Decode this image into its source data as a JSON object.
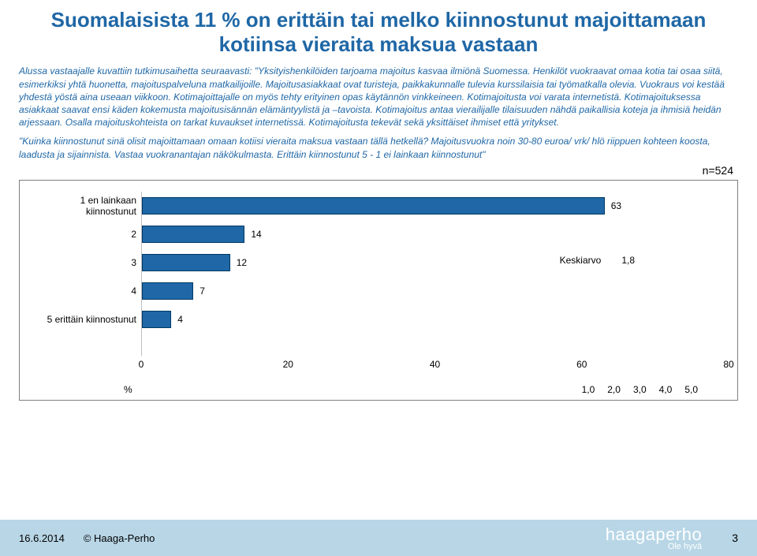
{
  "title": "Suomalaisista 11 % on erittäin tai melko kiinnostunut majoittamaan kotiinsa vieraita maksua vastaan",
  "description": "Alussa vastaajalle kuvattiin tutkimusaihetta seuraavasti: \"Yksityishenkilöiden tarjoama majoitus kasvaa ilmiönä Suomessa. Henkilöt vuokraavat omaa kotia tai osaa siitä, esimerkiksi yhtä huonetta, majoituspalveluna matkailijoille. Majoitusasiakkaat ovat turisteja, paikkakunnalle tulevia kurssilaisia tai työmatkalla olevia. Vuokraus voi kestää yhdestä yöstä aina useaan viikkoon. Kotimajoittajalle on myös tehty erityinen opas käytännön vinkkeineen. Kotimajoitusta voi varata internetistä. Kotimajoituksessa asiakkaat saavat ensi käden kokemusta majoitusisännän elämäntyylistä ja –tavoista. Kotimajoitus antaa vierailijalle tilaisuuden nähdä paikallisia koteja ja ihmisiä heidän arjessaan. Osalla majoituskohteista on tarkat kuvaukset internetissä. Kotimajoitusta tekevät sekä yksittäiset ihmiset että yritykset.",
  "question": "\"Kuinka kiinnostunut sinä olisit majoittamaan omaan kotiisi vieraita maksua vastaan tällä hetkellä? Majoitusvuokra noin 30-80 euroa/ vrk/ hlö riippuen kohteen koosta, laadusta ja sijainnista. Vastaa vuokranantajan näkökulmasta. Erittäin kiinnostunut 5   -  1 ei lainkaan kiinnostunut\"",
  "n_label": "n=524",
  "chart": {
    "type": "bar-horizontal",
    "xmin": 0,
    "xmax": 80,
    "xticks": [
      0,
      20,
      40,
      60,
      80
    ],
    "bar_color": "#1f67a6",
    "bar_border": "#003a66",
    "background": "#ffffff",
    "categories": [
      {
        "label": "1 en lainkaan kiinnostunut",
        "value": 63
      },
      {
        "label": "2",
        "value": 14
      },
      {
        "label": "3",
        "value": 12
      },
      {
        "label": "4",
        "value": 7
      },
      {
        "label": "5 erittäin kiinnostunut",
        "value": 4
      }
    ],
    "pct_symbol": "%"
  },
  "mean": {
    "label": "Keskiarvo",
    "value": "1,8"
  },
  "mean_scale": [
    "1,0",
    "2,0",
    "3,0",
    "4,0",
    "5,0"
  ],
  "footer": {
    "date": "16.6.2014",
    "copyright": "© Haaga-Perho",
    "logo_main": "haagaperho",
    "logo_sub": "Ole hyvä",
    "page": "3"
  }
}
